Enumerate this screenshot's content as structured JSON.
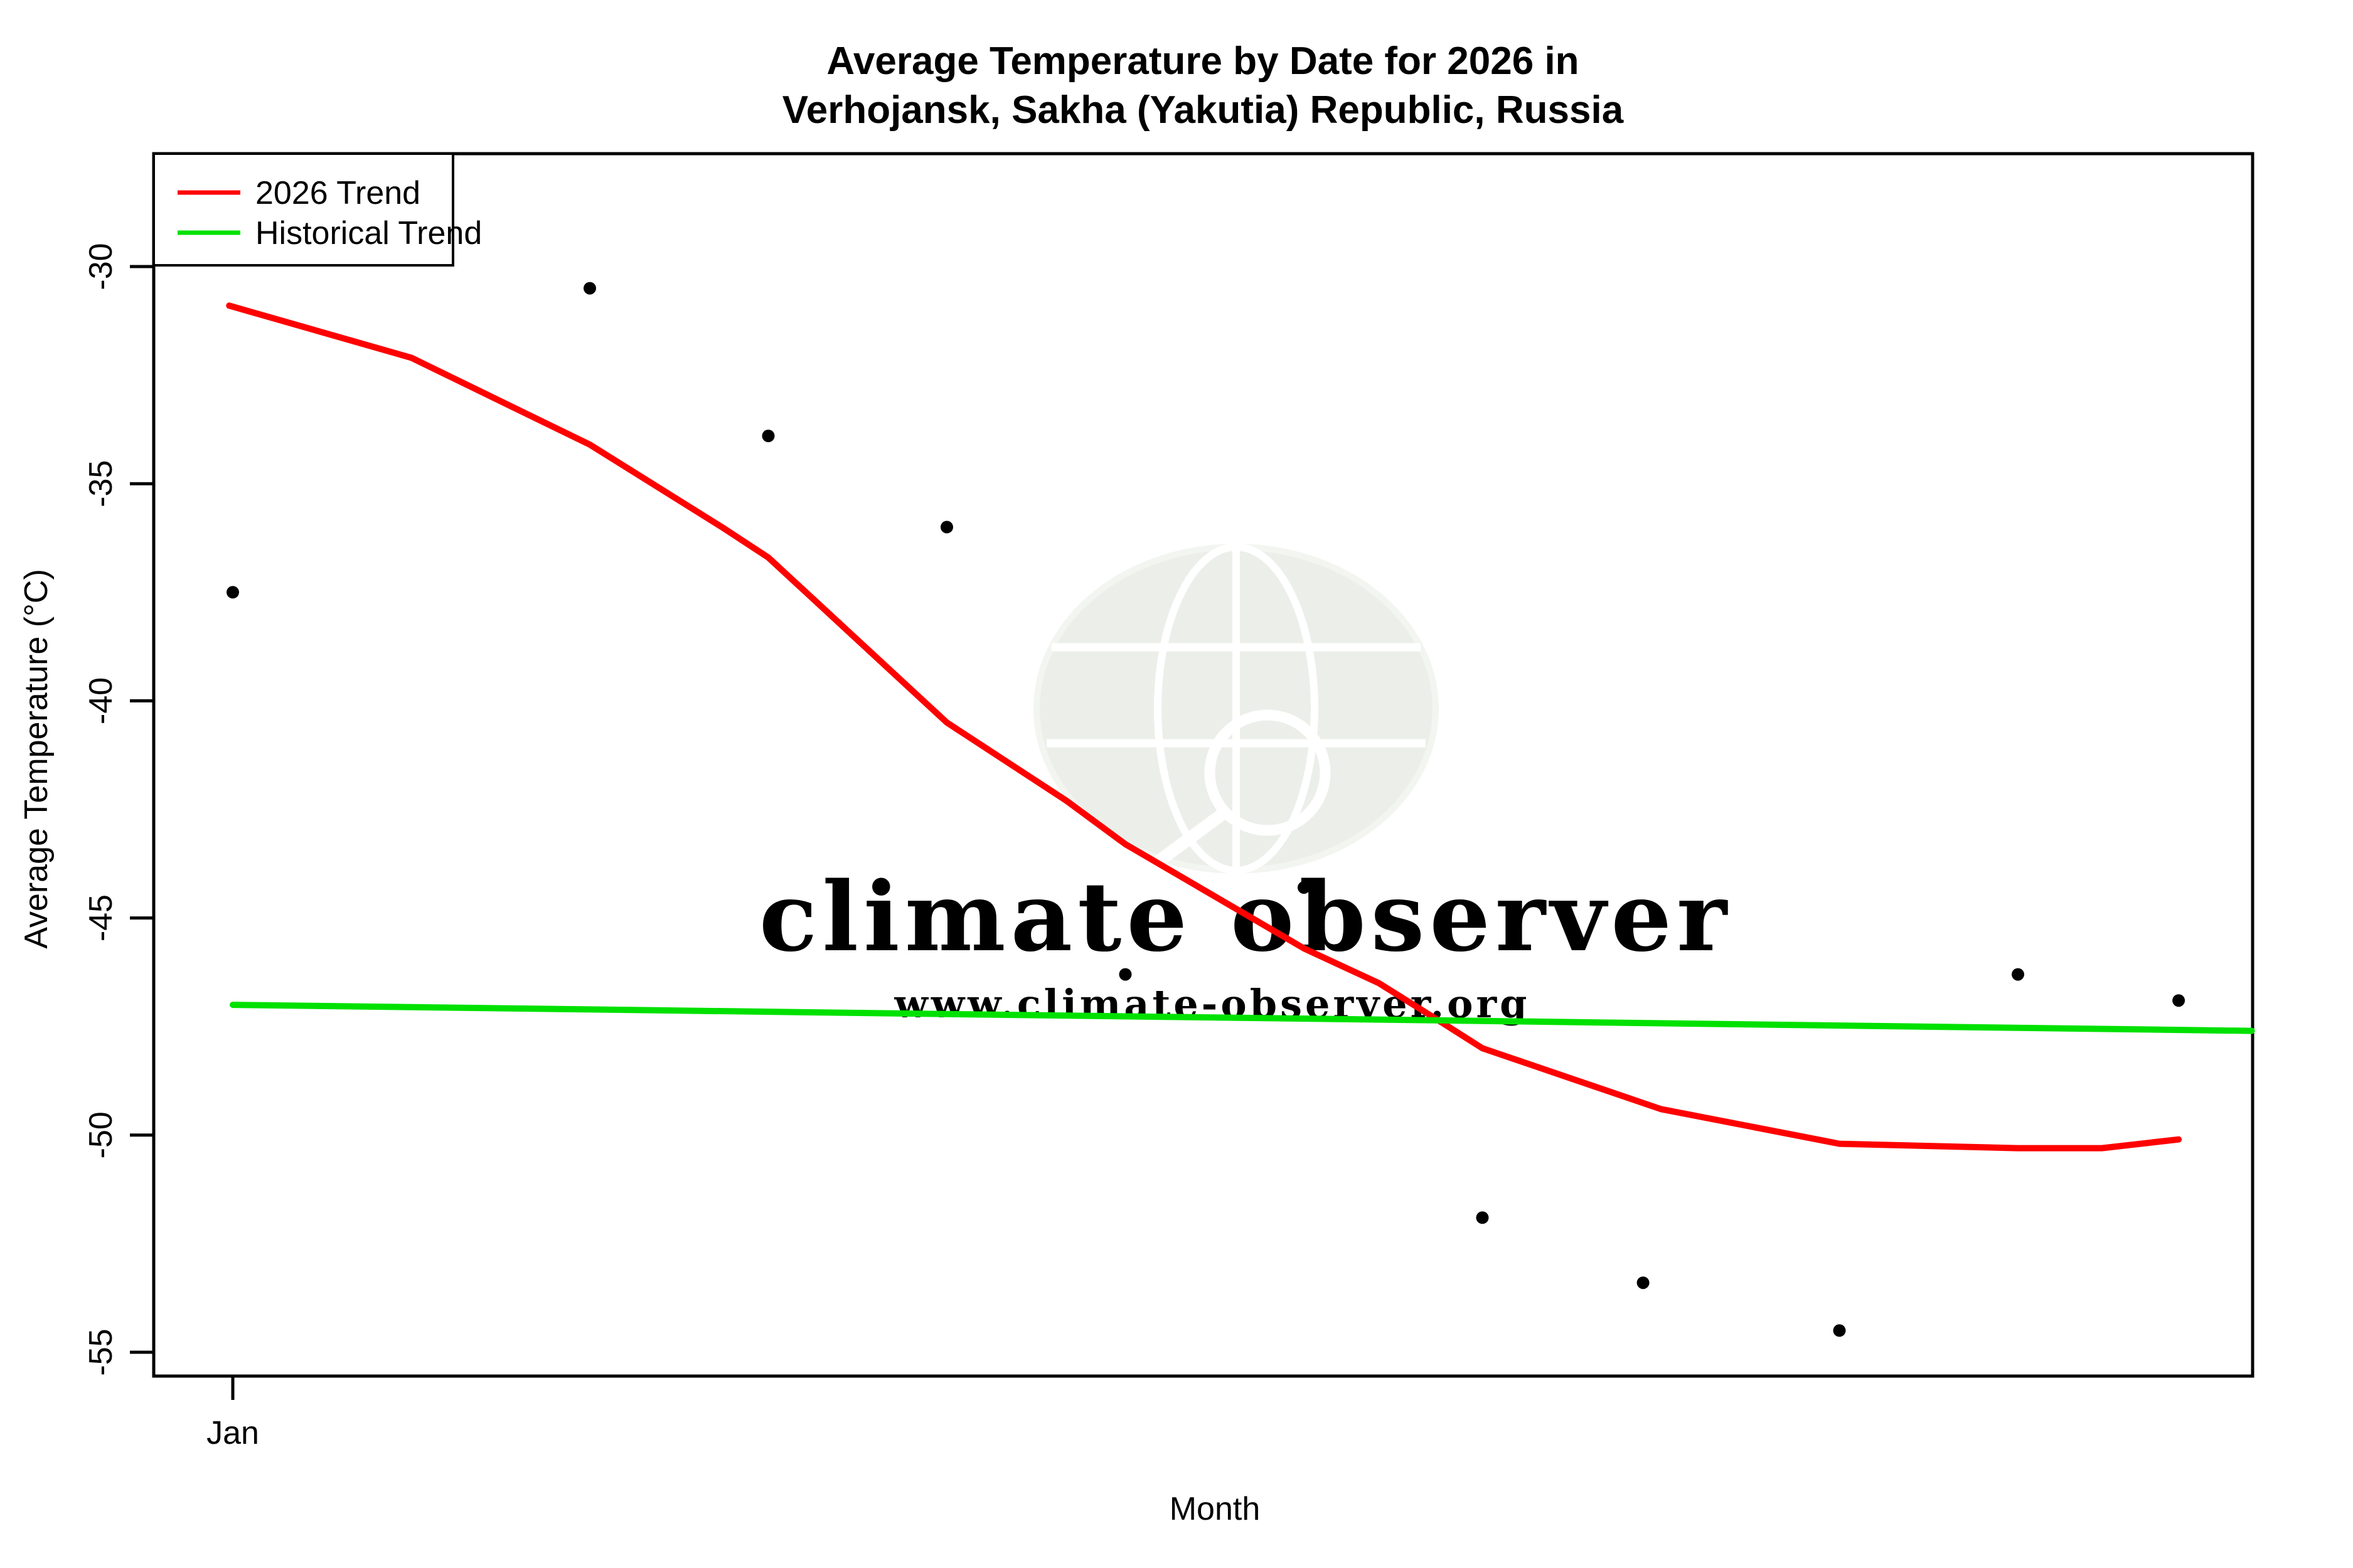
{
  "title": {
    "line1": "Average Temperature by Date for 2026 in",
    "line2": "Verhojansk, Sakha (Yakutia) Republic, Russia"
  },
  "axes": {
    "x_label": "Month",
    "y_label": "Average Temperature (°C)",
    "x_ticks": [
      {
        "label": "Jan",
        "month": 1
      }
    ],
    "y_ticks": [
      "-30",
      "-35",
      "-40",
      "-45",
      "-50",
      "-55"
    ]
  },
  "legend": {
    "items": [
      {
        "label": "2026 Trend",
        "color": "#ff0000"
      },
      {
        "label": "Historical Trend",
        "color": "#00e100"
      }
    ]
  },
  "watermark": {
    "line1": "climate observer",
    "line2": "www.climate-observer.org",
    "text_color": "#e9e9e9",
    "globe_fill": "#ecefe9"
  },
  "colors": {
    "trend_2026": "#ff0000",
    "historical_trend": "#00e100",
    "points": "#000000"
  },
  "chart_data": {
    "type": "scatter",
    "title": "Average Temperature by Date for 2026 in Verhojansk, Sakha (Yakutia) Republic, Russia",
    "xlabel": "Month",
    "ylabel": "Average Temperature (°C)",
    "x_unit": "month index, 1 = Jan",
    "xlim": [
      0.56,
      12.31
    ],
    "ylim": [
      -55.6,
      -27.4
    ],
    "grid": false,
    "legend_position": "top-left",
    "points": [
      {
        "x": 1.0,
        "t": -37.5
      },
      {
        "x": 3.0,
        "t": -30.5
      },
      {
        "x": 4.0,
        "t": -33.9
      },
      {
        "x": 5.0,
        "t": -36.0
      },
      {
        "x": 6.0,
        "t": -46.3
      },
      {
        "x": 7.0,
        "t": -44.3
      },
      {
        "x": 8.0,
        "t": -51.9
      },
      {
        "x": 8.9,
        "t": -53.4
      },
      {
        "x": 10.0,
        "t": -54.5
      },
      {
        "x": 11.0,
        "t": -46.3
      },
      {
        "x": 11.9,
        "t": -46.9
      }
    ],
    "series": [
      {
        "name": "2026 Trend",
        "color": "#ff0000",
        "type": "line",
        "points": [
          [
            0.98,
            -30.9
          ],
          [
            2.0,
            -32.1
          ],
          [
            3.0,
            -34.1
          ],
          [
            3.74,
            -36.0
          ],
          [
            4.0,
            -36.7
          ],
          [
            5.0,
            -40.5
          ],
          [
            5.67,
            -42.3
          ],
          [
            6.0,
            -43.3
          ],
          [
            7.0,
            -45.7
          ],
          [
            7.42,
            -46.5
          ],
          [
            7.77,
            -47.4
          ],
          [
            8.0,
            -48.0
          ],
          [
            9.0,
            -49.4
          ],
          [
            10.0,
            -50.2
          ],
          [
            11.0,
            -50.3
          ],
          [
            11.47,
            -50.3
          ],
          [
            11.9,
            -50.1
          ]
        ]
      },
      {
        "name": "Historical Trend",
        "color": "#00e100",
        "type": "line",
        "points": [
          [
            1.0,
            -47.0
          ],
          [
            12.31,
            -47.6
          ]
        ]
      }
    ]
  }
}
